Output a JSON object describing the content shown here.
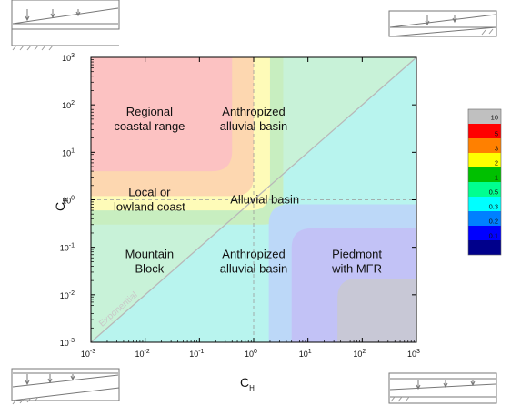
{
  "chart_data": {
    "type": "heatmap",
    "x_axis": {
      "symbol": "C",
      "subscript": "H",
      "scale": "log",
      "range": [
        0.001,
        1000
      ],
      "ticks": [
        {
          "base": "10",
          "exp": "-3"
        },
        {
          "base": "10",
          "exp": "-2"
        },
        {
          "base": "10",
          "exp": "-1"
        },
        {
          "base": "10",
          "exp": "0"
        },
        {
          "base": "10",
          "exp": "1"
        },
        {
          "base": "10",
          "exp": "2"
        },
        {
          "base": "10",
          "exp": "3"
        }
      ]
    },
    "y_axis": {
      "symbol": "C",
      "subscript": "R",
      "scale": "log",
      "range": [
        0.001,
        1000
      ],
      "ticks": [
        {
          "base": "10",
          "exp": "-3"
        },
        {
          "base": "10",
          "exp": "-2"
        },
        {
          "base": "10",
          "exp": "-1"
        },
        {
          "base": "10",
          "exp": "0"
        },
        {
          "base": "10",
          "exp": "1"
        },
        {
          "base": "10",
          "exp": "2"
        },
        {
          "base": "10",
          "exp": "3"
        }
      ]
    },
    "grid": false,
    "reference_lines": {
      "vertical_dashed_at_CH": 1,
      "horizontal_dashed_at_CR": 1,
      "diagonal_label": "Exponential"
    },
    "regions": [
      {
        "lines": [
          "Regional",
          "coastal range"
        ],
        "CH": 0.012,
        "CR": 50
      },
      {
        "lines": [
          "Anthropized",
          "alluvial basin"
        ],
        "CH": 1.0,
        "CR": 50
      },
      {
        "lines": [
          "Local or",
          "lowland coast"
        ],
        "CH": 0.012,
        "CR": 1.0
      },
      {
        "lines": [
          "Alluvial basin"
        ],
        "CH": 1.6,
        "CR": 1.0
      },
      {
        "lines": [
          "Mountain",
          "Block"
        ],
        "CH": 0.012,
        "CR": 0.05
      },
      {
        "lines": [
          "Anthropized",
          "alluvial basin"
        ],
        "CH": 1.0,
        "CR": 0.05
      },
      {
        "lines": [
          "Piedmont",
          "with MFR"
        ],
        "CH": 80,
        "CR": 0.05
      }
    ],
    "colorbar": {
      "levels": [
        "10",
        "5",
        "3",
        "2",
        "1",
        "0.5",
        "0.3",
        "0.2",
        "0.1"
      ],
      "colors": [
        "#c0c0c0",
        "#ff0000",
        "#ff8000",
        "#ffff00",
        "#00c000",
        "#00ff90",
        "#00ffff",
        "#0080ff",
        "#0000ff",
        "#00008b"
      ]
    },
    "field_colors": {
      "gt10": "#fcc2c2",
      "5_10": "#fdd7b0",
      "3_5": "#fefbb8",
      "2_3": "#c8eec0",
      "1_2": "#c8f2d8",
      "0.5_1": "#b8f4ee",
      "0.3_0.5": "#bcd8f8",
      "0.2_0.3": "#c2c2f6",
      "0.1_0.2": "#c8c8d6",
      "lt0.1": "#c8c8d6"
    }
  }
}
